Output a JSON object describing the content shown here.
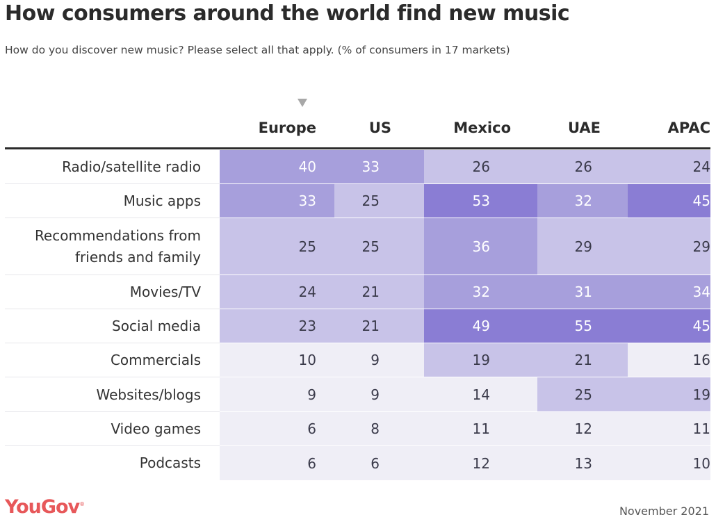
{
  "title": "How consumers around the world find new music",
  "subtitle": "How do you discover new music? Please select all that apply. (% of consumers in 17 markets)",
  "sort_indicator": "sort-descending-icon",
  "footer": {
    "brand": "YouGov",
    "date": "November 2021"
  },
  "colors": {
    "tier_dark": "#8a7dd4",
    "tier_mid": "#a79fdc",
    "tier_light": "#c8c3e8",
    "tier_faint": "#efeef6",
    "text_on_dark": "#ffffff",
    "text_on_light": "#3a3a4a",
    "brand": "#e7585a"
  },
  "chart_data": {
    "type": "heatmap",
    "title": "How consumers around the world find new music",
    "subtitle": "How do you discover new music? Please select all that apply. (% of consumers in 17 markets)",
    "xlabel": "",
    "ylabel": "",
    "sorted_by": "Europe",
    "columns": [
      "Europe",
      "US",
      "Mexico",
      "UAE",
      "APAC"
    ],
    "rows": [
      "Radio/satellite radio",
      "Music apps",
      "Recommendations from friends and family",
      "Movies/TV",
      "Social media",
      "Commercials",
      "Websites/blogs",
      "Video games",
      "Podcasts"
    ],
    "values": [
      [
        40,
        33,
        26,
        26,
        24
      ],
      [
        33,
        25,
        53,
        32,
        45
      ],
      [
        25,
        25,
        36,
        29,
        29
      ],
      [
        24,
        21,
        32,
        31,
        34
      ],
      [
        23,
        21,
        49,
        55,
        45
      ],
      [
        10,
        9,
        19,
        21,
        16
      ],
      [
        9,
        9,
        14,
        25,
        19
      ],
      [
        6,
        8,
        11,
        12,
        11
      ],
      [
        6,
        6,
        12,
        13,
        10
      ]
    ],
    "unit": "% of consumers"
  }
}
